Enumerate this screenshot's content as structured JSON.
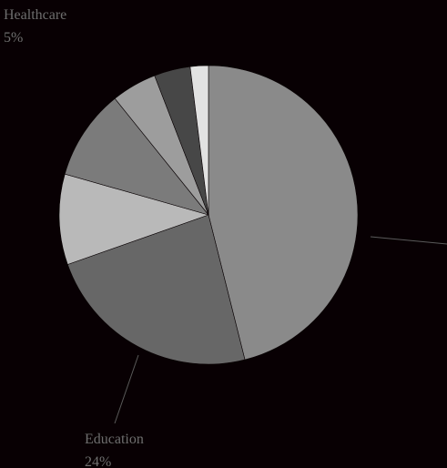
{
  "chart_data": {
    "type": "pie",
    "title": "",
    "start_angle": 0,
    "direction": "clockwise",
    "slices": [
      {
        "label": "",
        "percent": "",
        "value": 47,
        "color": "#8a8a8a"
      },
      {
        "label": "Education",
        "percent": "24%",
        "value": 24,
        "color": "#676767"
      },
      {
        "label": "",
        "percent": "",
        "value": 10,
        "color": "#b9b9b9"
      },
      {
        "label": "",
        "percent": "",
        "value": 10,
        "color": "#7b7b7b"
      },
      {
        "label": "Healthcare",
        "percent": "5%",
        "value": 5,
        "color": "#9d9d9d"
      },
      {
        "label": "",
        "percent": "",
        "value": 4,
        "color": "#474747"
      },
      {
        "label": "",
        "percent": "",
        "value": 2,
        "color": "#e2e2e2"
      }
    ]
  }
}
